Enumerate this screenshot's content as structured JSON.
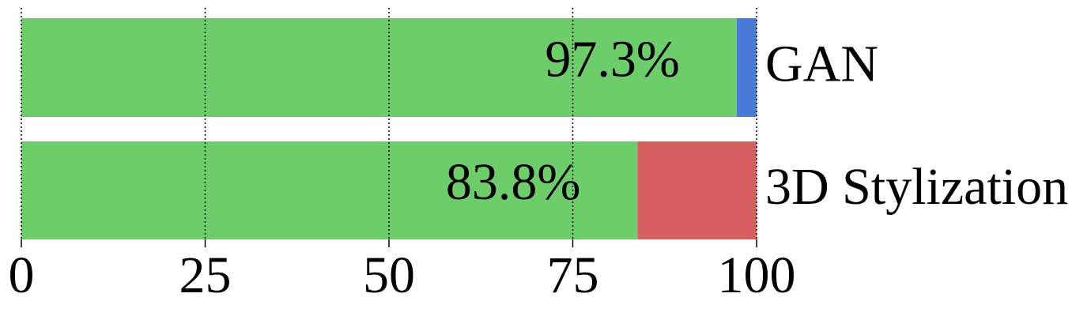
{
  "chart_data": {
    "type": "stacked-barh",
    "categories": [
      "GAN",
      "3D Stylization"
    ],
    "series": [
      {
        "color": "#6ccd6a",
        "values": [
          97.3,
          83.8
        ],
        "value_labels": [
          "97.3%",
          "83.8%"
        ]
      },
      {
        "colors": [
          "#4a7bd6",
          "#d65f5f"
        ],
        "values": [
          2.7,
          16.2
        ]
      }
    ],
    "xlim": [
      0,
      100
    ],
    "xticks": [
      0,
      25,
      50,
      75,
      100
    ],
    "grid": true
  }
}
